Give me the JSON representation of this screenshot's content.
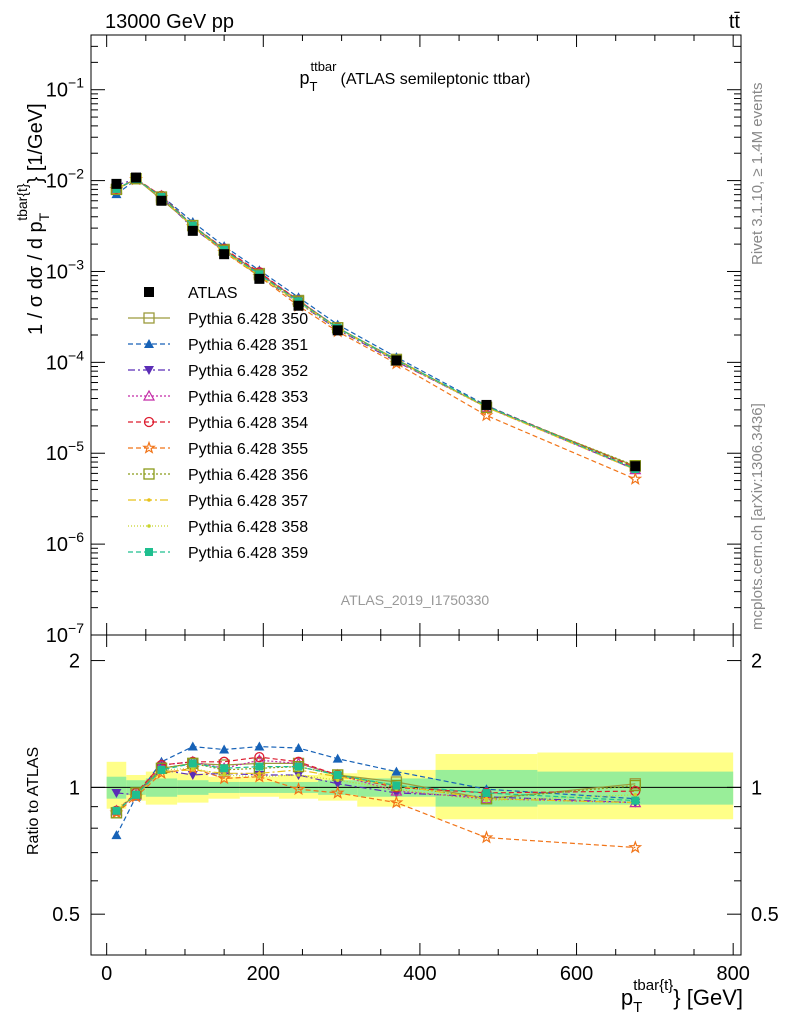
{
  "header": {
    "left": "13000 GeV pp",
    "right": "tt̄"
  },
  "side_right_top": "Rivet 3.1.10, ≥ 1.4M events",
  "side_right_bottom": "mcplots.cern.ch [arXiv:1306.3436]",
  "watermark": "ATLAS_2019_I1750330",
  "colors": {
    "data": "#000000",
    "band_inner": "#99ee99",
    "band_outer": "#ffff88",
    "series": [
      "#9c9a3c",
      "#1762b7",
      "#5b2db6",
      "#c32ba6",
      "#dd1c2f",
      "#f17418",
      "#8b9c1a",
      "#e8c21a",
      "#c8d42a",
      "#1fbf8f"
    ]
  },
  "chart_data": [
    {
      "type": "line",
      "title": "p_T^ttbar (ATLAS semileptonic ttbar)",
      "title_parts": {
        "main": "p",
        "sub": "T",
        "sup": "ttbar",
        "rest": "(ATLAS semileptonic ttbar)"
      },
      "ylabel": "1 / σ dσ / d p_T^{tbar{t}} [1/GeV]",
      "ylabel_parts": {
        "main": "1 / σ dσ / d p",
        "sub": "T",
        "sup": "tbar{t}",
        "rest": "} [1/GeV]"
      },
      "log_y": true,
      "ylim": [
        1e-07,
        0.4
      ],
      "xlim": [
        -20,
        810
      ],
      "yticks": [
        {
          "value": 1e-07,
          "base": "10",
          "exp": "−7"
        },
        {
          "value": 1e-06,
          "base": "10",
          "exp": "−6"
        },
        {
          "value": 1e-05,
          "base": "10",
          "exp": "−5"
        },
        {
          "value": 0.0001,
          "base": "10",
          "exp": "−4"
        },
        {
          "value": 0.001,
          "base": "10",
          "exp": "−3"
        },
        {
          "value": 0.01,
          "base": "10",
          "exp": "−2"
        },
        {
          "value": 0.1,
          "base": "10",
          "exp": "−1"
        }
      ],
      "legend_position": "middle-left",
      "x": [
        12.5,
        37.5,
        70,
        110,
        150,
        195,
        245,
        295,
        370,
        485,
        675
      ],
      "data": {
        "name": "ATLAS",
        "values": [
          0.0092,
          0.0108,
          0.006,
          0.0028,
          0.00155,
          0.00083,
          0.00042,
          0.000225,
          0.000105,
          3.4e-05,
          7.2e-06
        ]
      },
      "series": [
        {
          "name": "Pythia 6.428 350",
          "marker": "square-open",
          "dash": "",
          "values": [
            0.008,
            0.0105,
            0.0062,
            0.0032,
            0.00175,
            0.00095,
            0.00048,
            0.00024,
            0.000108,
            3.2e-05,
            7.2e-06
          ]
        },
        {
          "name": "Pythia 6.428 351",
          "marker": "triangle-up",
          "dash": "5,3",
          "values": [
            0.0071,
            0.0102,
            0.0068,
            0.0035,
            0.0019,
            0.00103,
            0.00052,
            0.00026,
            0.000114,
            3.35e-05,
            6.8e-06
          ]
        },
        {
          "name": "Pythia 6.428 352",
          "marker": "triangle-down",
          "dash": "7,3,2,3",
          "values": [
            0.0089,
            0.0104,
            0.0066,
            0.003,
            0.00168,
            0.00089,
            0.00045,
            0.00023,
            0.000102,
            3.25e-05,
            6.6e-06
          ]
        },
        {
          "name": "Pythia 6.428 353",
          "marker": "triangle-open",
          "dash": "2,2",
          "values": [
            0.0081,
            0.0104,
            0.0068,
            0.0032,
            0.00172,
            0.00096,
            0.00048,
            0.00024,
            0.000103,
            3.2e-05,
            6.6e-06
          ]
        },
        {
          "name": "Pythia 6.428 354",
          "marker": "circle-open",
          "dash": "5,3",
          "values": [
            0.0081,
            0.0105,
            0.0068,
            0.0032,
            0.00178,
            0.00098,
            0.00048,
            0.00024,
            0.000105,
            3.3e-05,
            7e-06
          ]
        },
        {
          "name": "Pythia 6.428 355",
          "marker": "star-open",
          "dash": "5,3",
          "values": [
            0.008,
            0.0103,
            0.0065,
            0.0031,
            0.00163,
            0.00088,
            0.000418,
            0.000218,
            9.7e-05,
            2.6e-05,
            5.2e-06
          ]
        },
        {
          "name": "Pythia 6.428 356",
          "marker": "square-open",
          "dash": "2,2",
          "values": [
            0.008,
            0.0105,
            0.0066,
            0.0032,
            0.00171,
            0.00092,
            0.00047,
            0.00024,
            0.000106,
            3.2e-05,
            7.3e-06
          ]
        },
        {
          "name": "Pythia 6.428 357",
          "marker": "dot",
          "dash": "8,3,2,3",
          "values": [
            0.0081,
            0.0104,
            0.0065,
            0.0031,
            0.00168,
            0.0009,
            0.00046,
            0.00024,
            0.000106,
            3.2e-05,
            6.6e-06
          ]
        },
        {
          "name": "Pythia 6.428 358",
          "marker": "dot",
          "dash": "1,2",
          "values": [
            0.0082,
            0.0104,
            0.0066,
            0.0031,
            0.00166,
            0.00088,
            0.00045,
            0.000233,
            0.000104,
            3.2e-05,
            6.9e-06
          ]
        },
        {
          "name": "Pythia 6.428 359",
          "marker": "square",
          "dash": "5,3",
          "values": [
            0.0081,
            0.0104,
            0.0066,
            0.0032,
            0.00172,
            0.00093,
            0.00047,
            0.00024,
            0.000106,
            3.3e-05,
            6.7e-06
          ]
        }
      ]
    },
    {
      "type": "line",
      "ylabel": "Ratio to ATLAS",
      "xlabel": "p_T^{tbar{t}} [GeV]",
      "xlabel_parts": {
        "main": "p",
        "sub": "T",
        "sup": "tbar{t}",
        "rest": "} [GeV]"
      },
      "log_y": true,
      "ylim": [
        0.4,
        2.3
      ],
      "xlim": [
        -20,
        810
      ],
      "yticks": [
        0.5,
        1,
        2
      ],
      "xticks": [
        0,
        200,
        400,
        600,
        800
      ],
      "bin_edges": [
        0,
        25,
        50,
        90,
        130,
        170,
        220,
        270,
        320,
        420,
        550,
        800
      ],
      "band_inner": [
        [
          0.94,
          1.06
        ],
        [
          0.96,
          1.04
        ],
        [
          0.95,
          1.05
        ],
        [
          0.96,
          1.04
        ],
        [
          0.97,
          1.03
        ],
        [
          0.97,
          1.03
        ],
        [
          0.97,
          1.03
        ],
        [
          0.96,
          1.04
        ],
        [
          0.95,
          1.05
        ],
        [
          0.9,
          1.1
        ],
        [
          0.91,
          1.09
        ]
      ],
      "band_outer": [
        [
          0.89,
          1.15
        ],
        [
          0.93,
          1.07
        ],
        [
          0.91,
          1.09
        ],
        [
          0.92,
          1.08
        ],
        [
          0.94,
          1.06
        ],
        [
          0.95,
          1.06
        ],
        [
          0.94,
          1.07
        ],
        [
          0.93,
          1.08
        ],
        [
          0.9,
          1.1
        ],
        [
          0.84,
          1.2
        ],
        [
          0.84,
          1.21
        ]
      ],
      "series": [
        {
          "name": "Pythia 6.428 350",
          "values": [
            0.87,
            0.97,
            1.11,
            1.14,
            1.13,
            1.14,
            1.14,
            1.07,
            1.03,
            0.94,
            1.02
          ]
        },
        {
          "name": "Pythia 6.428 351",
          "values": [
            0.77,
            0.95,
            1.15,
            1.25,
            1.23,
            1.25,
            1.24,
            1.17,
            1.09,
            0.99,
            0.94
          ]
        },
        {
          "name": "Pythia 6.428 352",
          "values": [
            0.97,
            0.96,
            1.1,
            1.07,
            1.08,
            1.07,
            1.07,
            1.02,
            0.97,
            0.95,
            0.92
          ]
        },
        {
          "name": "Pythia 6.428 353",
          "values": [
            0.88,
            0.96,
            1.13,
            1.15,
            1.11,
            1.16,
            1.14,
            1.07,
            0.98,
            0.94,
            0.92
          ]
        },
        {
          "name": "Pythia 6.428 354",
          "values": [
            0.88,
            0.97,
            1.13,
            1.15,
            1.15,
            1.18,
            1.15,
            1.07,
            1.0,
            0.97,
            0.98
          ]
        },
        {
          "name": "Pythia 6.428 355",
          "values": [
            0.87,
            0.95,
            1.08,
            1.11,
            1.05,
            1.06,
            0.99,
            0.97,
            0.92,
            0.76,
            0.72
          ]
        },
        {
          "name": "Pythia 6.428 356",
          "values": [
            0.87,
            0.97,
            1.11,
            1.14,
            1.1,
            1.11,
            1.12,
            1.07,
            1.01,
            0.94,
            1.01
          ]
        },
        {
          "name": "Pythia 6.428 357",
          "values": [
            0.88,
            0.96,
            1.09,
            1.1,
            1.08,
            1.08,
            1.1,
            1.06,
            1.01,
            0.94,
            0.92
          ]
        },
        {
          "name": "Pythia 6.428 358",
          "values": [
            0.89,
            0.96,
            1.1,
            1.11,
            1.07,
            1.06,
            1.07,
            1.04,
            0.99,
            0.93,
            0.96
          ]
        },
        {
          "name": "Pythia 6.428 359",
          "values": [
            0.88,
            0.96,
            1.1,
            1.14,
            1.11,
            1.12,
            1.12,
            1.07,
            1.01,
            0.97,
            0.93
          ]
        }
      ]
    }
  ]
}
